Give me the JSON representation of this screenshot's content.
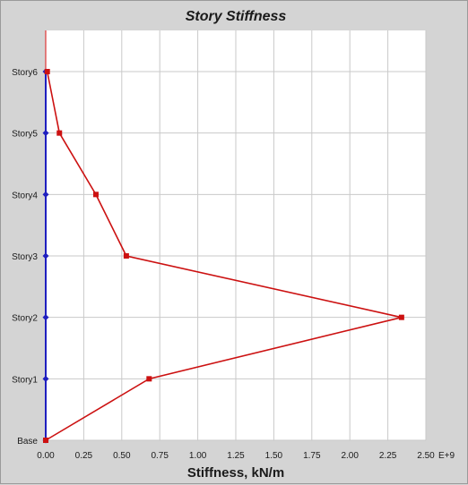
{
  "chart_data": {
    "type": "line",
    "title": "Story Stiffness",
    "xlabel": "Stiffness, kN/m",
    "x_multiplier_label": "E+9",
    "xlim": [
      0,
      2.5
    ],
    "x_ticks": [
      "0.00",
      "0.25",
      "0.50",
      "0.75",
      "1.00",
      "1.25",
      "1.50",
      "1.75",
      "2.00",
      "2.25",
      "2.50"
    ],
    "categories": [
      "Base",
      "Story1",
      "Story2",
      "Story3",
      "Story4",
      "Story5",
      "Story6"
    ],
    "grid": true,
    "series": [
      {
        "color": "#cc1111",
        "marker": "square",
        "values": [
          0.0,
          0.68,
          2.34,
          0.53,
          0.33,
          0.09,
          0.01
        ]
      },
      {
        "color": "#1f1fbf",
        "marker": "diamond",
        "values": [
          0,
          0,
          0,
          0,
          0,
          0,
          0
        ]
      }
    ]
  }
}
